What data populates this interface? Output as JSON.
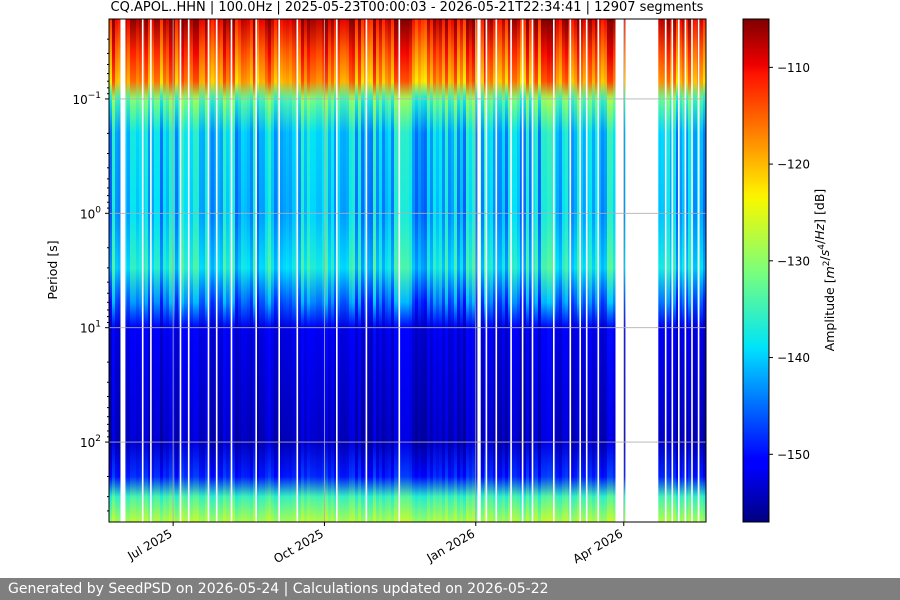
{
  "chart_data": {
    "type": "heatmap",
    "title": "CQ.APOL..HHN | 100.0Hz | 2025-05-23T00:00:03 - 2026-05-21T22:34:41 | 12907 segments",
    "xlabel": "",
    "ylabel": "Period [s]",
    "x_range": [
      "2025-05-23",
      "2026-05-21"
    ],
    "x_ticks": [
      {
        "date": "2025-07-01",
        "label": "Jul 2025"
      },
      {
        "date": "2025-10-01",
        "label": "Oct 2025"
      },
      {
        "date": "2026-01-01",
        "label": "Jan 2026"
      },
      {
        "date": "2026-04-01",
        "label": "Apr 2026"
      }
    ],
    "y_scale": "log",
    "y_inverted": true,
    "y_range_s": [
      0.02,
      500
    ],
    "y_ticks": [
      {
        "value": 0.1,
        "base": "10",
        "exp": "−1"
      },
      {
        "value": 1,
        "base": "10",
        "exp": "0"
      },
      {
        "value": 10,
        "base": "10",
        "exp": "1"
      },
      {
        "value": 100,
        "base": "10",
        "exp": "2"
      }
    ],
    "grid": true,
    "colormap": "jet",
    "colorbar": {
      "label_html": "Amplitude [m²/s⁴/Hz] [dB]",
      "label_parts": [
        "Amplitude [",
        "m",
        "2",
        "/",
        "s",
        "4",
        "/",
        "Hz",
        "] [dB]"
      ],
      "range_db": [
        -157,
        -105
      ],
      "ticks": [
        {
          "value": -110,
          "label": "−110"
        },
        {
          "value": -120,
          "label": "−120"
        },
        {
          "value": -130,
          "label": "−130"
        },
        {
          "value": -140,
          "label": "−140"
        },
        {
          "value": -150,
          "label": "−150"
        }
      ]
    },
    "period_profile_db": [
      {
        "period": 0.02,
        "db": -108
      },
      {
        "period": 0.04,
        "db": -114
      },
      {
        "period": 0.07,
        "db": -118
      },
      {
        "period": 0.1,
        "db": -133
      },
      {
        "period": 0.2,
        "db": -140
      },
      {
        "period": 1,
        "db": -141
      },
      {
        "period": 3,
        "db": -138
      },
      {
        "period": 6,
        "db": -145
      },
      {
        "period": 10,
        "db": -152
      },
      {
        "period": 100,
        "db": -154
      },
      {
        "period": 200,
        "db": -149
      },
      {
        "period": 300,
        "db": -135
      },
      {
        "period": 500,
        "db": -128
      }
    ],
    "data_gaps": [
      [
        "2025-05-30",
        "2025-06-02"
      ],
      [
        "2025-06-12",
        "2025-06-13"
      ],
      [
        "2025-06-17",
        "2025-06-18"
      ],
      [
        "2025-07-05",
        "2025-07-06"
      ],
      [
        "2025-07-10",
        "2025-07-11"
      ],
      [
        "2025-07-22",
        "2025-07-23"
      ],
      [
        "2025-07-27",
        "2025-07-28"
      ],
      [
        "2025-08-05",
        "2025-08-06"
      ],
      [
        "2025-08-20",
        "2025-08-21"
      ],
      [
        "2025-09-03",
        "2025-09-04"
      ],
      [
        "2025-09-14",
        "2025-09-15"
      ],
      [
        "2025-10-08",
        "2025-10-09"
      ],
      [
        "2025-10-26",
        "2025-10-27"
      ],
      [
        "2025-11-15",
        "2025-11-16"
      ],
      [
        "2026-01-02",
        "2026-01-04"
      ],
      [
        "2026-01-07",
        "2026-01-08"
      ],
      [
        "2026-01-13",
        "2026-01-14"
      ],
      [
        "2026-01-22",
        "2026-01-23"
      ],
      [
        "2026-01-29",
        "2026-01-30"
      ],
      [
        "2026-02-04",
        "2026-02-05"
      ],
      [
        "2026-02-17",
        "2026-02-18"
      ],
      [
        "2026-02-27",
        "2026-02-28"
      ],
      [
        "2026-03-05",
        "2026-03-06"
      ],
      [
        "2026-03-09",
        "2026-03-10"
      ],
      [
        "2026-03-16",
        "2026-03-17"
      ],
      [
        "2026-03-27",
        "2026-04-01"
      ],
      [
        "2026-04-02",
        "2026-04-22"
      ],
      [
        "2026-04-26",
        "2026-04-27"
      ],
      [
        "2026-04-30",
        "2026-05-01"
      ],
      [
        "2026-05-04",
        "2026-05-05"
      ],
      [
        "2026-05-08",
        "2026-05-09"
      ],
      [
        "2026-05-12",
        "2026-05-13"
      ],
      [
        "2026-05-16",
        "2026-05-17"
      ]
    ]
  },
  "footer": {
    "text": "Generated by SeedPSD on 2026-05-24 | Calculations updated on 2026-05-22"
  }
}
